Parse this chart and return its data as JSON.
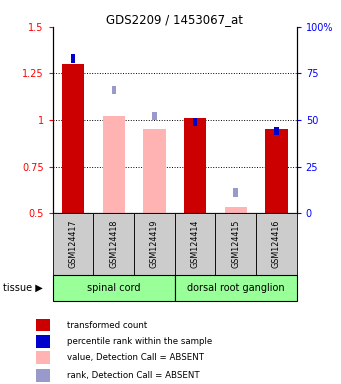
{
  "title": "GDS2209 / 1453067_at",
  "samples": [
    "GSM124417",
    "GSM124418",
    "GSM124419",
    "GSM124414",
    "GSM124415",
    "GSM124416"
  ],
  "groups": [
    {
      "name": "spinal cord",
      "indices": [
        0,
        1,
        2
      ]
    },
    {
      "name": "dorsal root ganglion",
      "indices": [
        3,
        4,
        5
      ]
    }
  ],
  "ylim_left": [
    0.5,
    1.5
  ],
  "ylim_right": [
    0,
    100
  ],
  "yticks_left": [
    0.5,
    0.75,
    1.0,
    1.25,
    1.5
  ],
  "ytick_labels_left": [
    "0.5",
    "0.75",
    "1",
    "1.25",
    "1.5"
  ],
  "yticks_right": [
    0,
    25,
    50,
    75,
    100
  ],
  "ytick_labels_right": [
    "0",
    "25",
    "50",
    "75",
    "100%"
  ],
  "bars": [
    {
      "x": 0,
      "value": 1.3,
      "rank": 83,
      "absent": false
    },
    {
      "x": 1,
      "value": 1.02,
      "rank": 66,
      "absent": true
    },
    {
      "x": 2,
      "value": 0.95,
      "rank": 52,
      "absent": true
    },
    {
      "x": 3,
      "value": 1.01,
      "rank": 49,
      "absent": false
    },
    {
      "x": 4,
      "value": 0.535,
      "rank": 11,
      "absent": true
    },
    {
      "x": 5,
      "value": 0.95,
      "rank": 44,
      "absent": false
    }
  ],
  "color_val_present": "#cc0000",
  "color_val_absent": "#ffb3b3",
  "color_rank_present": "#0000cc",
  "color_rank_absent": "#9999cc",
  "group_color": "#99ff99",
  "group_border_color": "#000000",
  "sample_box_color": "#cccccc",
  "tissue_label": "tissue",
  "legend_items": [
    {
      "color": "#cc0000",
      "label": "transformed count"
    },
    {
      "color": "#0000cc",
      "label": "percentile rank within the sample"
    },
    {
      "color": "#ffb3b3",
      "label": "value, Detection Call = ABSENT"
    },
    {
      "color": "#9999cc",
      "label": "rank, Detection Call = ABSENT"
    }
  ],
  "bar_width": 0.55,
  "rank_sq_half": 0.055
}
